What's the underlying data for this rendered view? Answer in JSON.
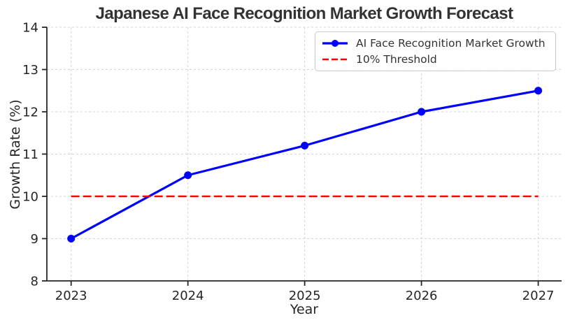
{
  "chart_data": {
    "type": "line",
    "title": "Japanese AI Face Recognition Market Growth Forecast",
    "xlabel": "Year",
    "ylabel": "Growth Rate (%)",
    "x": [
      "2023",
      "2024",
      "2025",
      "2026",
      "2027"
    ],
    "series": [
      {
        "name": "AI Face Recognition Market Growth",
        "values": [
          9.0,
          10.5,
          11.2,
          12.0,
          12.5
        ],
        "color": "#0000ff",
        "line_style": "solid",
        "marker": "circle"
      },
      {
        "name": "10% Threshold",
        "values": [
          10.0,
          10.0,
          10.0,
          10.0,
          10.0
        ],
        "color": "#ff0000",
        "line_style": "dashed",
        "marker": "none"
      }
    ],
    "ylim": [
      8,
      14
    ],
    "yticks": [
      8,
      9,
      10,
      11,
      12,
      13,
      14
    ],
    "grid": true,
    "legend_position": "upper right",
    "axis_color": "#262626",
    "grid_color": "#d4d4d4",
    "title_color": "#333333"
  }
}
